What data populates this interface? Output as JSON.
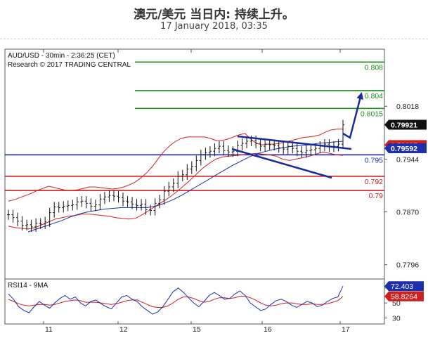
{
  "header": {
    "title": "澳元/美元 当日内: 持续上升。",
    "subtitle": "17 January 2018, 03:35"
  },
  "chart_data": {
    "type": "line",
    "instrument_line": "AUD/USD - 30min - 2:36:25 (CET)",
    "research_line": "Research © 2017 TRADING CENTRAL",
    "price_ticks": [
      "0.8018",
      "0.7944",
      "0.7870",
      "0.7796"
    ],
    "price_tick_values": [
      0.8018,
      0.7944,
      0.787,
      0.7796
    ],
    "price_range": [
      0.7776,
      0.8098
    ],
    "x_ticks": [
      "11",
      "12",
      "15",
      "16",
      "17"
    ],
    "resistance_levels": [
      {
        "label": "0.808",
        "value": 0.808,
        "color": "#1a8c1a"
      },
      {
        "label": "0.804",
        "value": 0.804,
        "color": "#1a8c1a"
      },
      {
        "label": "0.8015",
        "value": 0.8015,
        "color": "#1a8c1a"
      }
    ],
    "pivot_level": {
      "label": "0.795",
      "value": 0.795,
      "color": "#1c2ea8"
    },
    "support_levels": [
      {
        "label": "0.792",
        "value": 0.792,
        "color": "#cc1f1f"
      },
      {
        "label": "0.79",
        "value": 0.79,
        "color": "#cc1f1f"
      }
    ],
    "price_tags": [
      {
        "label": "0.79921",
        "value": 0.79921,
        "bg": "#111111",
        "fg": "#ffffff"
      },
      {
        "label": "0.79637",
        "value": 0.79637,
        "bg": "#cc1f1f",
        "fg": "#ffffff"
      },
      {
        "label": "0.79592",
        "value": 0.79592,
        "bg": "#1c2ea8",
        "fg": "#ffffff"
      }
    ],
    "close_series": [
      0.7866,
      0.7862,
      0.7857,
      0.7851,
      0.7852,
      0.7849,
      0.7854,
      0.7853,
      0.7856,
      0.7869,
      0.7877,
      0.7876,
      0.7878,
      0.7879,
      0.788,
      0.7884,
      0.7885,
      0.7882,
      0.7878,
      0.788,
      0.7888,
      0.7891,
      0.7893,
      0.7892,
      0.789,
      0.7885,
      0.7884,
      0.7881,
      0.7879,
      0.7881,
      0.7873,
      0.7872,
      0.7882,
      0.7887,
      0.7899,
      0.7905,
      0.791,
      0.792,
      0.7922,
      0.793,
      0.7934,
      0.7942,
      0.795,
      0.7953,
      0.7955,
      0.7959,
      0.7962,
      0.7956,
      0.7954,
      0.7955,
      0.7963,
      0.7966,
      0.7969,
      0.797,
      0.7966,
      0.7962,
      0.7965,
      0.7964,
      0.7963,
      0.796,
      0.7958,
      0.7962,
      0.7959,
      0.7955,
      0.7953,
      0.7956,
      0.7957,
      0.7959,
      0.7962,
      0.7965,
      0.7961,
      0.7962,
      0.7965,
      0.7992
    ],
    "bollinger_upper": [
      0.7885,
      0.7887,
      0.789,
      0.7893,
      0.7896,
      0.79,
      0.7903,
      0.7906,
      0.7904,
      0.7902,
      0.79,
      0.79,
      0.7901,
      0.7903,
      0.7905,
      0.7905,
      0.7904,
      0.7903,
      0.7902,
      0.7903,
      0.7905,
      0.7908,
      0.7912,
      0.7918,
      0.7925,
      0.7934,
      0.7945,
      0.7955,
      0.7963,
      0.7969,
      0.7973,
      0.7975,
      0.7975,
      0.7975,
      0.7975,
      0.7973,
      0.797,
      0.797,
      0.7972,
      0.7975,
      0.7978,
      0.798,
      0.7972,
      0.7966,
      0.7964,
      0.7965,
      0.7965,
      0.7966,
      0.7968,
      0.797,
      0.7972,
      0.7974,
      0.7975,
      0.7976,
      0.7978,
      0.7982,
      0.7985,
      0.7986,
      0.7986
    ],
    "bollinger_lower": [
      0.785,
      0.7848,
      0.7847,
      0.7846,
      0.7848,
      0.7852,
      0.7856,
      0.786,
      0.7862,
      0.7864,
      0.7865,
      0.7867,
      0.7867,
      0.7866,
      0.7865,
      0.7864,
      0.7862,
      0.7861,
      0.786,
      0.7861,
      0.7866,
      0.7872,
      0.7878,
      0.7884,
      0.789,
      0.7897,
      0.7905,
      0.7913,
      0.7922,
      0.7931,
      0.7938,
      0.7944,
      0.7947,
      0.7948,
      0.7949,
      0.795,
      0.7951,
      0.7952,
      0.7951,
      0.795,
      0.7948,
      0.7944,
      0.7942,
      0.7944,
      0.7946,
      0.7948,
      0.7951,
      0.7954,
      0.7952,
      0.795,
      0.7949
    ],
    "moving_average": [
      0.7842,
      0.7846,
      0.785,
      0.7854,
      0.7858,
      0.7863,
      0.7867,
      0.787,
      0.7872,
      0.7874,
      0.7875,
      0.7876,
      0.7876,
      0.7876,
      0.7876,
      0.7878,
      0.7882,
      0.7887,
      0.7893,
      0.79,
      0.7907,
      0.7914,
      0.7921,
      0.7928,
      0.7935,
      0.7941,
      0.7947,
      0.7952,
      0.7955,
      0.7958,
      0.796,
      0.7962,
      0.7963,
      0.7964,
      0.7966,
      0.7967,
      0.7968,
      0.7969
    ],
    "rsi_label": "RSI14 - 9MA",
    "rsi_ticks": [
      "70",
      "50",
      "30"
    ],
    "rsi_tick_values": [
      70,
      50,
      30
    ],
    "rsi_range": [
      22,
      82
    ],
    "rsi_tags": [
      {
        "label": "72.403",
        "value": 72.403,
        "bg": "#1c2ea8",
        "fg": "#ffffff"
      },
      {
        "label": "58.8264",
        "value": 58.8264,
        "bg": "#cc1f1f",
        "fg": "#ffffff"
      }
    ],
    "rsi_series": [
      62,
      55,
      45,
      40,
      37,
      45,
      52,
      47,
      43,
      50,
      56,
      60,
      55,
      58,
      50,
      46,
      52,
      54,
      49,
      45,
      42,
      50,
      58,
      60,
      55,
      52,
      45,
      40,
      35,
      38,
      45,
      55,
      65,
      70,
      64,
      57,
      50,
      45,
      52,
      60,
      64,
      60,
      55,
      56,
      62,
      66,
      60,
      50,
      45,
      40,
      42,
      48,
      53,
      55,
      52,
      47,
      44,
      48,
      52,
      50,
      45,
      47,
      52,
      56,
      58,
      72.4
    ],
    "rsi_ma_series": [
      55,
      52,
      49,
      47,
      46,
      47,
      48,
      48,
      47,
      48,
      50,
      52,
      53,
      54,
      53,
      51,
      51,
      51,
      50,
      49,
      48,
      49,
      51,
      53,
      54,
      54,
      51,
      48,
      45,
      44,
      44,
      46,
      50,
      55,
      58,
      58,
      56,
      53,
      51,
      52,
      55,
      57,
      57,
      56,
      57,
      59,
      59,
      57,
      54,
      50,
      47,
      46,
      47,
      49,
      50,
      50,
      49,
      48,
      48,
      49,
      48,
      48,
      49,
      51,
      53,
      58.8
    ]
  }
}
